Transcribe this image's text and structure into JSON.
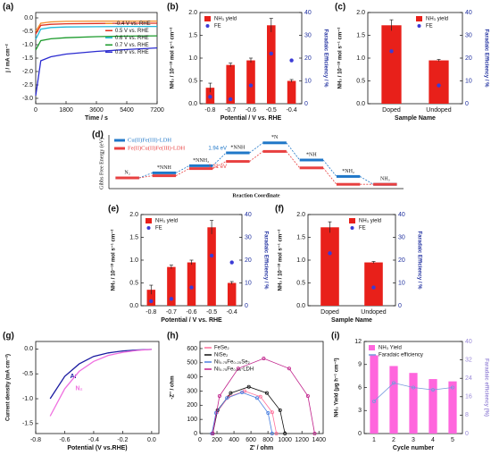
{
  "chart_data": [
    {
      "type": "line",
      "label": "(a)",
      "xlabel": "Time / s",
      "ylabel": "j / mA cm⁻²",
      "x": [
        0,
        300,
        900,
        1800,
        3600,
        5400,
        7200
      ],
      "xlim": [
        0,
        7200
      ],
      "xticks": [
        0,
        1800,
        3600,
        5400,
        7200
      ],
      "ylim": [
        -3.2,
        0.2
      ],
      "yticks": [
        {
          "value": 0,
          "label": "0.0"
        },
        -0.5,
        {
          "value": -1,
          "label": "-1.0"
        },
        -1.5,
        {
          "value": -2,
          "label": "-2.0"
        },
        -2.5,
        {
          "value": -3,
          "label": "-3.0"
        }
      ],
      "legend": "right",
      "series": [
        {
          "name": "-0.4 V vs. RHE",
          "type": "line",
          "color": "#f28c28",
          "values": [
            -0.5,
            -0.2,
            -0.15,
            -0.13,
            -0.12,
            -0.12,
            -0.12
          ]
        },
        {
          "name": "0.5 V vs. RHE",
          "type": "line",
          "color": "#e0301e",
          "values": [
            -0.6,
            -0.28,
            -0.24,
            -0.22,
            -0.21,
            -0.2,
            -0.2
          ]
        },
        {
          "name": "0.6 V vs. RHE",
          "type": "line",
          "color": "#22b8d8",
          "values": [
            -0.8,
            -0.42,
            -0.36,
            -0.34,
            -0.33,
            -0.32,
            -0.32
          ]
        },
        {
          "name": "0.7 V vs. RHE",
          "type": "line",
          "color": "#1a9a2a",
          "values": [
            -1.2,
            -0.85,
            -0.78,
            -0.74,
            -0.7,
            -0.68,
            -0.67
          ]
        },
        {
          "name": "0.8 V vs. RHE",
          "type": "line",
          "color": "#2a2ad0",
          "values": [
            -2.9,
            -1.6,
            -1.45,
            -1.35,
            -1.25,
            -1.18,
            -1.12
          ]
        }
      ]
    },
    {
      "type": "bar",
      "label": "(b)",
      "xlabel": "Potential / V vs. RHE",
      "ylabel": "NH₃ / 10⁻¹⁰ mol s⁻¹ cm⁻²",
      "y2label": "Faradaic Efficiency / %",
      "y2color": "#1f2f9f",
      "categories": [
        "-0.8",
        "-0.7",
        "-0.6",
        "-0.5",
        "-0.4"
      ],
      "ylim": [
        0,
        2.0
      ],
      "yticks": [
        {
          "value": 0,
          "label": "0.0"
        },
        0.5,
        {
          "value": 1,
          "label": "1.0"
        },
        1.5,
        {
          "value": 2,
          "label": "2.0"
        }
      ],
      "y2lim": [
        0,
        40
      ],
      "y2ticks": [
        0,
        10,
        20,
        30,
        40
      ],
      "legend": "top-left",
      "series": [
        {
          "name": "NH₃ yield",
          "type": "bar",
          "color": "#e8201a",
          "values": [
            0.35,
            0.85,
            0.95,
            1.72,
            0.5
          ],
          "errors": [
            0.1,
            0.04,
            0.05,
            0.15,
            0.03
          ]
        },
        {
          "name": "FE",
          "type": "scatter",
          "axis": "y2",
          "color": "#3b3bd6",
          "values": [
            3,
            2,
            8,
            22,
            19
          ]
        }
      ]
    },
    {
      "type": "bar",
      "label": "(c)",
      "xlabel": "Sample Name",
      "ylabel": "NH₃ / 10⁻¹⁰ mol s⁻¹ cm⁻²",
      "y2label": "Faradaic Efficiency / %",
      "y2color": "#1f2f9f",
      "categories": [
        "Doped",
        "Undoped"
      ],
      "ylim": [
        0,
        2.0
      ],
      "yticks": [
        {
          "value": 0,
          "label": "0.0"
        },
        0.5,
        {
          "value": 1,
          "label": "1.0"
        },
        1.5,
        {
          "value": 2,
          "label": "2.0"
        }
      ],
      "y2lim": [
        0,
        40
      ],
      "y2ticks": [
        0,
        10,
        20,
        30,
        40
      ],
      "legend": "top-right",
      "series": [
        {
          "name": "NH₃ yield",
          "type": "bar",
          "color": "#e8201a",
          "values": [
            1.72,
            0.95
          ],
          "errors": [
            0.12,
            0.02
          ]
        },
        {
          "name": "FE",
          "type": "scatter",
          "axis": "y2",
          "color": "#3b3bd6",
          "values": [
            23,
            8
          ]
        }
      ]
    },
    {
      "type": "energy",
      "label": "(d)",
      "xlabel": "Reaction Coordinate",
      "ylabel": "Gibbs Free Energy (eV)",
      "categories": [
        "N₂",
        "*NNH",
        "*NNH₂",
        "*NNH",
        "*N",
        "*NH",
        "*NH₂",
        "NH₃"
      ],
      "ylim": [
        -1.5,
        5.5
      ],
      "legend": "top-left",
      "annotations": [
        "1.94 eV",
        "1.21 eV"
      ],
      "series": [
        {
          "name": "Cu(II)Fe(III)-LDH",
          "color": "#1f77c8",
          "values": [
            0,
            0.7,
            1.7,
            3.5,
            4.9,
            2.5,
            0.2,
            -0.9
          ]
        },
        {
          "name": "Fe(II)Cu(II)Fe(III)-LDH",
          "color": "#e84040",
          "values": [
            0,
            0.3,
            1.3,
            2.3,
            3.7,
            1.4,
            -0.9,
            -0.9
          ]
        }
      ]
    },
    {
      "type": "bar",
      "label": "(e)",
      "xlabel": "Potential / V vs. RHE",
      "ylabel": "NH₃ / 10⁻¹⁰ mol s⁻¹ cm⁻²",
      "y2label": "Faradaic Efficiency / %",
      "y2color": "#1f2f9f",
      "categories": [
        "-0.8",
        "-0.7",
        "-0.6",
        "-0.5",
        "-0.4"
      ],
      "ylim": [
        0,
        2.0
      ],
      "yticks": [
        {
          "value": 0,
          "label": "0.0"
        },
        0.5,
        {
          "value": 1,
          "label": "1.0"
        },
        1.5,
        {
          "value": 2,
          "label": "2.0"
        }
      ],
      "y2lim": [
        0,
        40
      ],
      "y2ticks": [
        0,
        10,
        20,
        30,
        40
      ],
      "legend": "top-left",
      "series": [
        {
          "name": "NH₃ yield",
          "type": "bar",
          "color": "#e8201a",
          "values": [
            0.35,
            0.85,
            0.95,
            1.72,
            0.5
          ],
          "errors": [
            0.1,
            0.04,
            0.05,
            0.15,
            0.03
          ]
        },
        {
          "name": "FE",
          "type": "scatter",
          "axis": "y2",
          "color": "#3b3bd6",
          "values": [
            2,
            3,
            8,
            22,
            19
          ]
        }
      ]
    },
    {
      "type": "bar",
      "label": "(f)",
      "xlabel": "Sample Name",
      "ylabel": "NH₃ / 10⁻¹⁰ mol s⁻¹ cm⁻²",
      "y2label": "Faradaic Efficiency / %",
      "y2color": "#1f2f9f",
      "categories": [
        "Doped",
        "Undoped"
      ],
      "ylim": [
        0,
        2.0
      ],
      "yticks": [
        {
          "value": 0,
          "label": "0.0"
        },
        0.5,
        {
          "value": 1,
          "label": "1.0"
        },
        1.5,
        {
          "value": 2,
          "label": "2.0"
        }
      ],
      "y2lim": [
        0,
        40
      ],
      "y2ticks": [
        0,
        10,
        20,
        30,
        40
      ],
      "legend": "top-right",
      "series": [
        {
          "name": "NH₃ yield",
          "type": "bar",
          "color": "#e8201a",
          "values": [
            1.72,
            0.95
          ],
          "errors": [
            0.12,
            0.02
          ]
        },
        {
          "name": "FE",
          "type": "scatter",
          "axis": "y2",
          "color": "#3b3bd6",
          "values": [
            23,
            8
          ]
        }
      ]
    },
    {
      "type": "line",
      "label": "(g)",
      "xlabel": "Potential (V vs.RHE)",
      "ylabel": "Current density (mA cm⁻²)",
      "x": [
        -0.7,
        -0.6,
        -0.5,
        -0.4,
        -0.3,
        -0.2,
        -0.1,
        0
      ],
      "xlim": [
        -0.8,
        0.05
      ],
      "xticks": [
        -0.8,
        -0.6,
        -0.4,
        -0.2,
        {
          "value": 0,
          "label": "0.0"
        }
      ],
      "ylim": [
        -1.7,
        0.15
      ],
      "yticks": [
        {
          "value": 0,
          "label": "0.0"
        },
        -0.5,
        {
          "value": -1,
          "label": "-1.0"
        },
        -1.5
      ],
      "legend": "inline",
      "series": [
        {
          "name": "Ar",
          "type": "line",
          "color": "#1a1aa0",
          "values": [
            -1.0,
            -0.55,
            -0.3,
            -0.15,
            -0.08,
            -0.04,
            -0.02,
            -0.01
          ]
        },
        {
          "name": "N₂",
          "type": "line",
          "color": "#f070e0",
          "values": [
            -1.35,
            -0.8,
            -0.45,
            -0.25,
            -0.13,
            -0.07,
            -0.03,
            -0.01
          ]
        }
      ]
    },
    {
      "type": "line",
      "label": "(h)",
      "xlabel": "Z' / ohm",
      "ylabel": "-Z'' / ohm",
      "xlim": [
        0,
        1450
      ],
      "xticks": [
        0,
        200,
        400,
        600,
        800,
        1000,
        1200,
        1400
      ],
      "ylim": [
        0,
        650
      ],
      "yticks": [
        0,
        100,
        200,
        300,
        400,
        500,
        600
      ],
      "legend": "top-left",
      "series": [
        {
          "name": "FeSe₂",
          "type": "line",
          "marker": true,
          "color": "#ff6f9a",
          "x": [
            150,
            200,
            337,
            525,
            712,
            850,
            900
          ],
          "values": [
            0,
            150,
            260,
            300,
            260,
            150,
            0
          ]
        },
        {
          "name": "NiSe₂",
          "type": "line",
          "marker": true,
          "color": "#111111",
          "x": [
            150,
            207,
            362,
            575,
            787,
            943,
            1000
          ],
          "values": [
            0,
            165,
            286,
            330,
            286,
            165,
            0
          ]
        },
        {
          "name": "Ni₀.₇₅Fe₀.₂₅Se₂",
          "type": "line",
          "marker": true,
          "color": "#4a7fe0",
          "x": [
            140,
            188,
            317,
            495,
            672,
            802,
            850
          ],
          "values": [
            0,
            145,
            251,
            290,
            251,
            145,
            0
          ]
        },
        {
          "name": "Ni₀.₇₅Fe₀.₂₅-LDH",
          "type": "line",
          "marker": true,
          "color": "#c0208a",
          "x": [
            150,
            230,
            450,
            750,
            1050,
            1270,
            1350
          ],
          "values": [
            0,
            265,
            459,
            530,
            459,
            265,
            0
          ]
        }
      ]
    },
    {
      "type": "bar",
      "label": "(i)",
      "xlabel": "Cycle number",
      "ylabel": "NH₃ Yield (μg h⁻¹ cm⁻²)",
      "y2label": "Faradaic efficiency (%)",
      "y2color": "#9a8ad8",
      "categories": [
        "1",
        "2",
        "3",
        "4",
        "5"
      ],
      "ylim": [
        0,
        12
      ],
      "yticks": [
        0,
        3,
        6,
        9,
        12
      ],
      "y2lim": [
        0,
        40
      ],
      "y2ticks": [
        0,
        8,
        16,
        24,
        32,
        40
      ],
      "legend": "top-left",
      "series": [
        {
          "name": "NH₃ Yield",
          "type": "bar",
          "color": "#ff66dd",
          "values": [
            10.2,
            8.8,
            7.9,
            7.1,
            6.8
          ]
        },
        {
          "name": "Faradaic efficiency",
          "type": "line",
          "marker": true,
          "axis": "y2",
          "color": "#7799dd",
          "values": [
            14,
            22,
            20,
            19,
            20
          ]
        }
      ]
    }
  ]
}
